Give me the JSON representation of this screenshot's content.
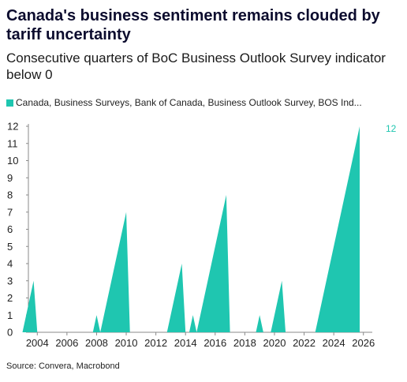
{
  "title": "Canada's business sentiment remains clouded by tariff uncertainty",
  "subtitle": "Consecutive quarters of BoC Business Outlook Survey indicator below 0",
  "legend": {
    "label": "Canada, Business Surveys, Bank of Canada, Business Outlook Survey, BOS Ind...",
    "color": "#1fc6b0"
  },
  "source": "Source: Convera, Macrobond",
  "chart_data": {
    "type": "area",
    "series": [
      {
        "color": "#1fc6b0",
        "last_value_label": "12",
        "points": [
          [
            2003.0,
            0
          ],
          [
            2003.25,
            1
          ],
          [
            2003.5,
            2
          ],
          [
            2003.75,
            3
          ],
          [
            2004.0,
            0
          ],
          [
            2007.75,
            0
          ],
          [
            2008.0,
            1
          ],
          [
            2008.25,
            0
          ],
          [
            2008.5,
            1
          ],
          [
            2008.75,
            2
          ],
          [
            2009.0,
            3
          ],
          [
            2009.25,
            4
          ],
          [
            2009.5,
            5
          ],
          [
            2009.75,
            6
          ],
          [
            2010.0,
            7
          ],
          [
            2010.25,
            0
          ],
          [
            2012.75,
            0
          ],
          [
            2013.0,
            1
          ],
          [
            2013.25,
            2
          ],
          [
            2013.5,
            3
          ],
          [
            2013.75,
            4
          ],
          [
            2014.0,
            0
          ],
          [
            2014.25,
            0
          ],
          [
            2014.5,
            1
          ],
          [
            2014.75,
            0
          ],
          [
            2015.0,
            1
          ],
          [
            2015.25,
            2
          ],
          [
            2015.5,
            3
          ],
          [
            2015.75,
            4
          ],
          [
            2016.0,
            5
          ],
          [
            2016.25,
            6
          ],
          [
            2016.5,
            7
          ],
          [
            2016.75,
            8
          ],
          [
            2017.0,
            0
          ],
          [
            2018.75,
            0
          ],
          [
            2019.0,
            1
          ],
          [
            2019.25,
            0
          ],
          [
            2019.75,
            0
          ],
          [
            2020.0,
            1
          ],
          [
            2020.25,
            2
          ],
          [
            2020.5,
            3
          ],
          [
            2020.75,
            0
          ],
          [
            2022.75,
            0
          ],
          [
            2023.0,
            1
          ],
          [
            2023.25,
            2
          ],
          [
            2023.5,
            3
          ],
          [
            2023.75,
            4
          ],
          [
            2024.0,
            5
          ],
          [
            2024.25,
            6
          ],
          [
            2024.5,
            7
          ],
          [
            2024.75,
            8
          ],
          [
            2025.0,
            9
          ],
          [
            2025.25,
            10
          ],
          [
            2025.5,
            11
          ],
          [
            2025.75,
            12
          ]
        ]
      }
    ],
    "xlim": [
      2003.4,
      2026.6
    ],
    "ylim": [
      0,
      12
    ],
    "x_ticks": [
      2004,
      2006,
      2008,
      2010,
      2012,
      2014,
      2016,
      2018,
      2020,
      2022,
      2024,
      2026
    ],
    "y_ticks": [
      0,
      1,
      2,
      3,
      4,
      5,
      6,
      7,
      8,
      9,
      10,
      11,
      12
    ],
    "grid": false,
    "legend_position": "top-left"
  }
}
